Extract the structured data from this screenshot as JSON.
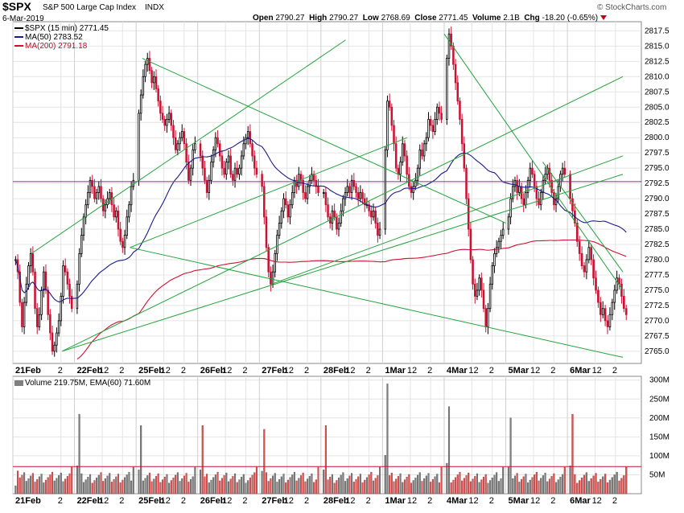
{
  "header": {
    "symbol": "$SPX",
    "name": "S&P 500 Large Cap Index",
    "exchange": "INDX",
    "date": "6-Mar-2019",
    "open_label": "Open",
    "open": "2790.27",
    "high_label": "High",
    "high": "2790.27",
    "low_label": "Low",
    "low": "2768.69",
    "close_label": "Close",
    "close": "2771.45",
    "volume_label": "Volume",
    "volume": "2.1B",
    "chg_label": "Chg",
    "chg": "-18.20 (-0.65%)",
    "credit": "© StockCharts.com"
  },
  "legend": {
    "price": "$SPX (15 min) 2771.45",
    "ma50": "MA(50) 2783.52",
    "ma200": "MA(200) 2791.18",
    "volume": "Volume 219.75M, EMA(60) 71.60M"
  },
  "colors": {
    "up": "#000000",
    "down": "#cc1133",
    "ma50": "#1a1a8c",
    "ma200": "#cc1133",
    "trend": "#22a33a",
    "hline": "#7a3b7a",
    "vol_up": "#7f7f7f",
    "vol_down": "#d85555",
    "ema": "#cc1133",
    "grid": "#e4e4e4"
  },
  "chart_data": [
    {
      "type": "candlestick",
      "interval": "15 min",
      "ylim": [
        2763,
        2819
      ],
      "y_ticks": [
        2765.0,
        2767.5,
        2770.0,
        2772.5,
        2775.0,
        2777.5,
        2780.0,
        2782.5,
        2785.0,
        2787.5,
        2790.0,
        2792.5,
        2795.0,
        2797.5,
        2800.0,
        2802.5,
        2805.0,
        2807.5,
        2810.0,
        2812.5,
        2815.0,
        2817.5
      ],
      "x_ticks": [
        "21Feb",
        "2",
        "22Feb",
        "12",
        "2",
        "25Feb",
        "12",
        "2",
        "26Feb",
        "12",
        "2",
        "27Feb",
        "12",
        "2",
        "28Feb",
        "12",
        "2",
        "1Mar",
        "12",
        "2",
        "4Mar",
        "12",
        "2",
        "5Mar",
        "12",
        "2",
        "6Mar",
        "12",
        "2"
      ],
      "sessions": [
        {
          "day": "21Feb",
          "points": [
            2780,
            2778,
            2773,
            2769,
            2773,
            2776,
            2779,
            2781,
            2778,
            2772,
            2769,
            2771,
            2775,
            2778,
            2775,
            2771,
            2768,
            2765,
            2766,
            2768,
            2770,
            2774,
            2779,
            2778,
            2776,
            2774,
            2772
          ]
        },
        {
          "day": "22Feb",
          "points": [
            2776,
            2781,
            2784,
            2787,
            2789,
            2791,
            2793,
            2792,
            2790,
            2791,
            2792,
            2790,
            2788,
            2789,
            2790,
            2791,
            2789,
            2787,
            2788,
            2785,
            2783,
            2782,
            2784,
            2787,
            2789,
            2792,
            2793
          ]
        },
        {
          "day": "25Feb",
          "points": [
            2804,
            2807,
            2810,
            2812,
            2813,
            2811,
            2809,
            2810,
            2808,
            2806,
            2804,
            2803,
            2802,
            2803,
            2804,
            2802,
            2800,
            2798,
            2799,
            2800,
            2801,
            2799,
            2796,
            2793,
            2795,
            2798,
            2799
          ]
        },
        {
          "day": "26Feb",
          "points": [
            2797,
            2795,
            2793,
            2791,
            2793,
            2796,
            2798,
            2800,
            2799,
            2797,
            2795,
            2794,
            2796,
            2797,
            2794,
            2793,
            2795,
            2794,
            2795,
            2797,
            2799,
            2800,
            2801,
            2799,
            2797,
            2795,
            2794
          ]
        },
        {
          "day": "27Feb",
          "points": [
            2792,
            2787,
            2782,
            2778,
            2776,
            2778,
            2781,
            2784,
            2786,
            2788,
            2790,
            2789,
            2787,
            2789,
            2791,
            2793,
            2792,
            2794,
            2793,
            2791,
            2790,
            2792,
            2793,
            2794,
            2793,
            2792,
            2791
          ]
        },
        {
          "day": "28Feb",
          "points": [
            2791,
            2789,
            2787,
            2786,
            2788,
            2787,
            2785,
            2786,
            2788,
            2790,
            2791,
            2792,
            2791,
            2793,
            2792,
            2791,
            2790,
            2791,
            2790,
            2789,
            2789,
            2788,
            2787,
            2788,
            2786,
            2784,
            2785
          ]
        },
        {
          "day": "1Mar",
          "points": [
            2798,
            2806,
            2805,
            2802,
            2799,
            2795,
            2794,
            2796,
            2799,
            2797,
            2794,
            2792,
            2791,
            2792,
            2793,
            2795,
            2798,
            2797,
            2799,
            2800,
            2803,
            2802,
            2801,
            2803,
            2805,
            2804,
            2803
          ]
        },
        {
          "day": "4Mar",
          "points": [
            2813,
            2817,
            2815,
            2812,
            2809,
            2806,
            2803,
            2799,
            2795,
            2790,
            2785,
            2780,
            2776,
            2774,
            2775,
            2777,
            2775,
            2772,
            2769,
            2772,
            2776,
            2779,
            2781,
            2782,
            2783,
            2784,
            2785
          ]
        },
        {
          "day": "5Mar",
          "points": [
            2787,
            2790,
            2792,
            2793,
            2791,
            2792,
            2790,
            2789,
            2791,
            2793,
            2795,
            2794,
            2792,
            2790,
            2789,
            2791,
            2793,
            2794,
            2795,
            2793,
            2791,
            2789,
            2790,
            2792,
            2794,
            2795,
            2794
          ]
        },
        {
          "day": "6Mar",
          "points": [
            2790,
            2788,
            2786,
            2783,
            2781,
            2779,
            2778,
            2780,
            2782,
            2780,
            2777,
            2775,
            2773,
            2771,
            2772,
            2770,
            2769,
            2771,
            2773,
            2775,
            2777,
            2776,
            2774,
            2772,
            2771
          ]
        }
      ]
    },
    {
      "type": "bar",
      "title": "Volume",
      "ylim": [
        0,
        310
      ],
      "y_unit": "M",
      "y_ticks": [
        "50M",
        "100M",
        "150M",
        "200M",
        "250M",
        "300M"
      ],
      "y_tick_values": [
        50,
        100,
        150,
        200,
        250,
        300
      ],
      "ema_level": 71.6,
      "session_open_volumes": [
        60,
        210,
        180,
        180,
        170,
        180,
        290,
        230,
        200,
        210
      ]
    }
  ]
}
